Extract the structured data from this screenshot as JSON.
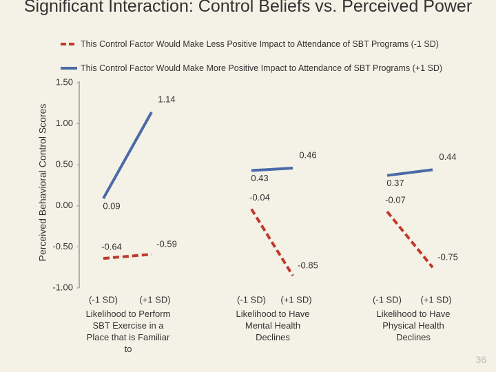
{
  "chart_data": {
    "type": "line",
    "title": "Significant Interaction: Control Beliefs vs. Perceived Power",
    "y_label": "Perceived Behavioral Control Scores",
    "ylim": [
      -1,
      1.5
    ],
    "yticks": [
      {
        "value": -1,
        "label": "-1.00"
      },
      {
        "value": -0.5,
        "label": "-0.50"
      },
      {
        "value": 0,
        "label": "0.00"
      },
      {
        "value": 0.5,
        "label": "0.50"
      },
      {
        "value": 1,
        "label": "1.00"
      },
      {
        "value": 1.5,
        "label": "1.50"
      }
    ],
    "groups": [
      {
        "categories": [
          "(-1 SD)",
          "(+1 SD)"
        ],
        "label": "Likelihood to Perform SBT Exercise in a Place that is Familiar to"
      },
      {
        "categories": [
          "(-1 SD)",
          "(+1 SD)"
        ],
        "label": "Likelihood to Have Mental Health Declines"
      },
      {
        "categories": [
          "(-1 SD)",
          "(+1 SD)"
        ],
        "label": "Likelihood to Have Physical Health Declines"
      }
    ],
    "series": [
      {
        "name": "This Control Factor Would Make Less Positive Impact to Attendance of  SBT Programs (-1 SD)",
        "color": "#c0392b",
        "dashed": true,
        "values": [
          [
            -0.64,
            -0.59
          ],
          [
            -0.04,
            -0.85
          ],
          [
            -0.07,
            -0.75
          ]
        ]
      },
      {
        "name": "This Control Factor Would Make More Positive Impact to Attendance of SBT Programs (+1 SD)",
        "color": "#4a6aa8",
        "dashed": false,
        "values": [
          [
            0.09,
            1.14
          ],
          [
            0.43,
            0.46
          ],
          [
            0.37,
            0.44
          ]
        ]
      }
    ],
    "page_number": "36"
  }
}
